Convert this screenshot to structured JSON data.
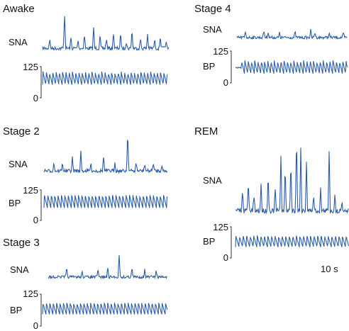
{
  "trace_color": "#2b5ca8",
  "panels": {
    "awake": {
      "title": "Awake",
      "sna": "SNA",
      "bp": "",
      "ytop": "125",
      "ybot": "0"
    },
    "stage4": {
      "title": "Stage 4",
      "sna": "SNA",
      "bp": "BP",
      "ytop": "125",
      "ybot": "0"
    },
    "stage2": {
      "title": "Stage 2",
      "sna": "SNA",
      "bp": "BP",
      "ytop": "125",
      "ybot": "0"
    },
    "rem": {
      "title": "REM",
      "sna": "SNA",
      "bp": "BP",
      "ytop": "125",
      "ybot": "0"
    },
    "stage3": {
      "title": "Stage 3",
      "sna": "SNA",
      "bp": "BP",
      "ytop": "125",
      "ybot": "0"
    }
  },
  "scale_bar": {
    "label": "10 s"
  }
}
